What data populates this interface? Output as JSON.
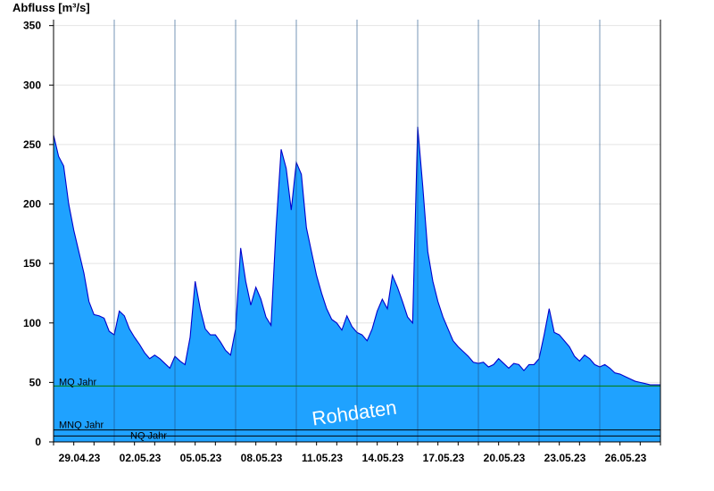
{
  "chart_data": {
    "type": "area",
    "ylabel": "Abfluss [m³/s]",
    "ylim": [
      0,
      355
    ],
    "yticks": [
      0,
      50,
      100,
      150,
      200,
      250,
      300,
      350
    ],
    "x_start": "29.04.23",
    "x_end": "29.05.23",
    "xticks": [
      "29.04.23",
      "02.05.23",
      "05.05.23",
      "08.05.23",
      "11.05.23",
      "14.05.23",
      "17.05.23",
      "20.05.23",
      "23.05.23",
      "26.05.23"
    ],
    "grid": true,
    "series": [
      {
        "points": [
          [
            "29.04.23 00:00",
            258
          ],
          [
            "29.04.23 06:00",
            240
          ],
          [
            "29.04.23 12:00",
            232
          ],
          [
            "29.04.23 18:00",
            200
          ],
          [
            "30.04.23 00:00",
            178
          ],
          [
            "30.04.23 06:00",
            160
          ],
          [
            "30.04.23 12:00",
            142
          ],
          [
            "30.04.23 18:00",
            118
          ],
          [
            "01.05.23 00:00",
            107
          ],
          [
            "01.05.23 06:00",
            106
          ],
          [
            "01.05.23 12:00",
            104
          ],
          [
            "01.05.23 18:00",
            93
          ],
          [
            "02.05.23 00:00",
            90
          ],
          [
            "02.05.23 06:00",
            110
          ],
          [
            "02.05.23 12:00",
            106
          ],
          [
            "02.05.23 18:00",
            95
          ],
          [
            "03.05.23 00:00",
            88
          ],
          [
            "03.05.23 06:00",
            82
          ],
          [
            "03.05.23 12:00",
            75
          ],
          [
            "03.05.23 18:00",
            70
          ],
          [
            "04.05.23 00:00",
            73
          ],
          [
            "04.05.23 06:00",
            70
          ],
          [
            "04.05.23 12:00",
            66
          ],
          [
            "04.05.23 18:00",
            62
          ],
          [
            "05.05.23 00:00",
            72
          ],
          [
            "05.05.23 06:00",
            68
          ],
          [
            "05.05.23 12:00",
            65
          ],
          [
            "05.05.23 18:00",
            88
          ],
          [
            "06.05.23 00:00",
            135
          ],
          [
            "06.05.23 06:00",
            112
          ],
          [
            "06.05.23 12:00",
            95
          ],
          [
            "06.05.23 18:00",
            90
          ],
          [
            "07.05.23 00:00",
            90
          ],
          [
            "07.05.23 06:00",
            84
          ],
          [
            "07.05.23 12:00",
            77
          ],
          [
            "07.05.23 18:00",
            73
          ],
          [
            "08.05.23 00:00",
            95
          ],
          [
            "08.05.23 06:00",
            163
          ],
          [
            "08.05.23 12:00",
            135
          ],
          [
            "08.05.23 18:00",
            115
          ],
          [
            "09.05.23 00:00",
            130
          ],
          [
            "09.05.23 06:00",
            120
          ],
          [
            "09.05.23 12:00",
            105
          ],
          [
            "09.05.23 18:00",
            98
          ],
          [
            "10.05.23 00:00",
            180
          ],
          [
            "10.05.23 06:00",
            246
          ],
          [
            "10.05.23 12:00",
            230
          ],
          [
            "10.05.23 18:00",
            195
          ],
          [
            "11.05.23 00:00",
            235
          ],
          [
            "11.05.23 06:00",
            225
          ],
          [
            "11.05.23 12:00",
            180
          ],
          [
            "11.05.23 18:00",
            160
          ],
          [
            "12.05.23 00:00",
            140
          ],
          [
            "12.05.23 06:00",
            125
          ],
          [
            "12.05.23 12:00",
            112
          ],
          [
            "12.05.23 18:00",
            103
          ],
          [
            "13.05.23 00:00",
            100
          ],
          [
            "13.05.23 06:00",
            94
          ],
          [
            "13.05.23 12:00",
            106
          ],
          [
            "13.05.23 18:00",
            97
          ],
          [
            "14.05.23 00:00",
            92
          ],
          [
            "14.05.23 06:00",
            90
          ],
          [
            "14.05.23 12:00",
            85
          ],
          [
            "14.05.23 18:00",
            95
          ],
          [
            "15.05.23 00:00",
            110
          ],
          [
            "15.05.23 06:00",
            120
          ],
          [
            "15.05.23 12:00",
            112
          ],
          [
            "15.05.23 18:00",
            140
          ],
          [
            "16.05.23 00:00",
            130
          ],
          [
            "16.05.23 06:00",
            118
          ],
          [
            "16.05.23 12:00",
            105
          ],
          [
            "16.05.23 18:00",
            100
          ],
          [
            "17.05.23 00:00",
            265
          ],
          [
            "17.05.23 06:00",
            215
          ],
          [
            "17.05.23 12:00",
            160
          ],
          [
            "17.05.23 18:00",
            135
          ],
          [
            "18.05.23 00:00",
            118
          ],
          [
            "18.05.23 06:00",
            105
          ],
          [
            "18.05.23 12:00",
            95
          ],
          [
            "18.05.23 18:00",
            85
          ],
          [
            "19.05.23 00:00",
            80
          ],
          [
            "19.05.23 06:00",
            76
          ],
          [
            "19.05.23 12:00",
            72
          ],
          [
            "19.05.23 18:00",
            67
          ],
          [
            "20.05.23 00:00",
            66
          ],
          [
            "20.05.23 06:00",
            67
          ],
          [
            "20.05.23 12:00",
            63
          ],
          [
            "20.05.23 18:00",
            65
          ],
          [
            "21.05.23 00:00",
            70
          ],
          [
            "21.05.23 06:00",
            66
          ],
          [
            "21.05.23 12:00",
            62
          ],
          [
            "21.05.23 18:00",
            66
          ],
          [
            "22.05.23 00:00",
            65
          ],
          [
            "22.05.23 06:00",
            60
          ],
          [
            "22.05.23 12:00",
            65
          ],
          [
            "22.05.23 18:00",
            65
          ],
          [
            "23.05.23 00:00",
            70
          ],
          [
            "23.05.23 06:00",
            90
          ],
          [
            "23.05.23 12:00",
            112
          ],
          [
            "23.05.23 18:00",
            92
          ],
          [
            "24.05.23 00:00",
            90
          ],
          [
            "24.05.23 06:00",
            85
          ],
          [
            "24.05.23 12:00",
            80
          ],
          [
            "24.05.23 18:00",
            72
          ],
          [
            "25.05.23 00:00",
            68
          ],
          [
            "25.05.23 06:00",
            73
          ],
          [
            "25.05.23 12:00",
            70
          ],
          [
            "25.05.23 18:00",
            65
          ],
          [
            "26.05.23 00:00",
            63
          ],
          [
            "26.05.23 06:00",
            65
          ],
          [
            "26.05.23 12:00",
            62
          ],
          [
            "26.05.23 18:00",
            58
          ],
          [
            "27.05.23 00:00",
            57
          ],
          [
            "27.05.23 06:00",
            55
          ],
          [
            "27.05.23 12:00",
            53
          ],
          [
            "27.05.23 18:00",
            51
          ],
          [
            "28.05.23 00:00",
            50
          ],
          [
            "28.05.23 06:00",
            49
          ],
          [
            "28.05.23 12:00",
            48
          ],
          [
            "28.05.23 18:00",
            48
          ],
          [
            "29.05.23 00:00",
            48
          ]
        ]
      }
    ],
    "reference_lines": [
      {
        "label": "MQ Jahr",
        "value": 47,
        "color": "#007a00"
      },
      {
        "label": "MNQ Jahr",
        "value": 10,
        "color": "#000000"
      },
      {
        "label": "NQ Jahr",
        "value": 5,
        "color": "#000000"
      }
    ],
    "annotations": [
      "Rohdaten"
    ],
    "colors": {
      "fill": "#1fa2ff",
      "line": "#0000cc",
      "grid": "#e4e4e4"
    }
  }
}
